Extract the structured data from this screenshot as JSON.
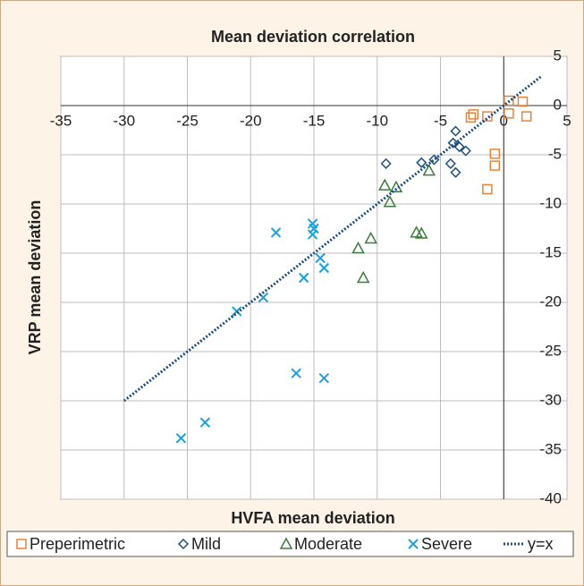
{
  "chart_data": {
    "type": "scatter",
    "title": "Mean deviation correlation",
    "x_label": "HVFA mean deviation",
    "y_label": "VRP mean deviation",
    "xlim": [
      -35,
      5
    ],
    "ylim": [
      -40,
      5
    ],
    "xticks": [
      -35,
      -30,
      -25,
      -20,
      -15,
      -10,
      -5,
      0,
      5
    ],
    "yticks": [
      5,
      0,
      -5,
      -10,
      -15,
      -20,
      -25,
      -30,
      -35,
      -40
    ],
    "grid": true,
    "legend": "bottom",
    "series": [
      {
        "name": "Preperimetric",
        "marker": "square",
        "color": "#e8833a",
        "x": [
          0.4,
          1.5,
          -2.4,
          -2.6,
          -1.3,
          0.4,
          1.8,
          -0.7,
          -0.7,
          -1.3
        ],
        "values": [
          0.5,
          0.4,
          -0.9,
          -1.2,
          -1.1,
          -0.8,
          -1.1,
          -4.9,
          -6.1,
          -8.5
        ]
      },
      {
        "name": "Mild",
        "marker": "diamond",
        "color": "#1f4e79",
        "x": [
          -3.8,
          -4.0,
          -3.5,
          -3.0,
          -5.5,
          -6.5,
          -4.2,
          -3.8,
          -9.3
        ],
        "values": [
          -2.6,
          -3.8,
          -4.2,
          -4.6,
          -5.5,
          -5.8,
          -5.9,
          -6.8,
          -5.9
        ]
      },
      {
        "name": "Moderate",
        "marker": "triangle",
        "color": "#3a7d3a",
        "x": [
          -9.4,
          -8.5,
          -9.0,
          -5.9,
          -10.5,
          -11.5,
          -6.9,
          -6.5,
          -11.1
        ],
        "values": [
          -8.1,
          -8.3,
          -9.8,
          -6.6,
          -13.5,
          -14.5,
          -12.9,
          -13.0,
          -17.5
        ]
      },
      {
        "name": "Severe",
        "marker": "cross",
        "color": "#1ea0d8",
        "x": [
          -15.1,
          -15.0,
          -15.1,
          -18.0,
          -14.5,
          -14.2,
          -15.8,
          -19.0,
          -21.1,
          -16.4,
          -14.2,
          -23.6,
          -25.5
        ],
        "values": [
          -12.0,
          -12.5,
          -13.1,
          -12.9,
          -15.5,
          -16.5,
          -17.5,
          -19.5,
          -20.9,
          -27.2,
          -27.7,
          -32.2,
          -33.8
        ]
      },
      {
        "name": "y=x",
        "marker": "dotted-line",
        "color": "#1f4e79",
        "x": [
          -30,
          3
        ],
        "values": [
          -30,
          3
        ]
      }
    ]
  }
}
